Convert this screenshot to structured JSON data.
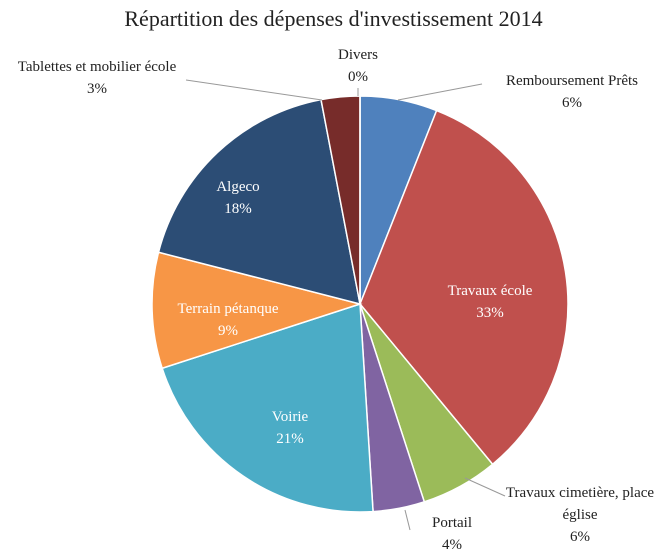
{
  "chart_data": {
    "type": "pie",
    "title": "Répartition des dépenses d'investissement 2014",
    "categories": [
      "Remboursement Prêts",
      "Travaux école",
      "Travaux cimetière, place église",
      "Portail",
      "Voirie",
      "Terrain pétanque",
      "Algeco",
      "Tablettes et mobilier école",
      "Divers"
    ],
    "values": [
      6,
      33,
      6,
      4,
      21,
      9,
      18,
      3,
      0
    ],
    "value_labels": [
      "6%",
      "33%",
      "6%",
      "4%",
      "21%",
      "9%",
      "18%",
      "3%",
      "0%"
    ],
    "colors": [
      "#4f81bd",
      "#c0504d",
      "#9bbb59",
      "#8064a2",
      "#4bacc6",
      "#f79646",
      "#2c4d75",
      "#772c2a",
      "#5f7530"
    ]
  }
}
